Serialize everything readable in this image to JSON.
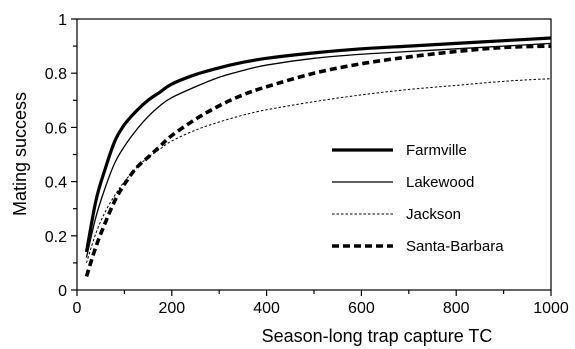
{
  "chart_data": {
    "type": "line",
    "xlabel": "Season-long trap capture TC",
    "ylabel": "Mating success",
    "xlim": [
      0,
      1000
    ],
    "ylim": [
      0,
      1
    ],
    "x_ticks": [
      0,
      200,
      400,
      600,
      800,
      1000
    ],
    "x_tick_labels": [
      "0",
      "200",
      "400",
      "600",
      "800",
      "1000"
    ],
    "y_ticks": [
      0,
      0.2,
      0.4,
      0.6,
      0.8,
      1
    ],
    "y_tick_labels": [
      "0",
      "0.2",
      "0.4",
      "0.6",
      "0.8",
      "1"
    ],
    "grid": false,
    "legend_position": "center-right",
    "series": [
      {
        "name": "Farmville",
        "style": "solid-thick",
        "color": "#000000",
        "points": [
          [
            20,
            0.14
          ],
          [
            40,
            0.33
          ],
          [
            60,
            0.45
          ],
          [
            80,
            0.55
          ],
          [
            100,
            0.61
          ],
          [
            125,
            0.66
          ],
          [
            150,
            0.7
          ],
          [
            175,
            0.73
          ],
          [
            200,
            0.76
          ],
          [
            250,
            0.795
          ],
          [
            300,
            0.82
          ],
          [
            350,
            0.84
          ],
          [
            400,
            0.855
          ],
          [
            500,
            0.875
          ],
          [
            600,
            0.89
          ],
          [
            700,
            0.9
          ],
          [
            800,
            0.91
          ],
          [
            900,
            0.92
          ],
          [
            1000,
            0.93
          ]
        ]
      },
      {
        "name": "Lakewood",
        "style": "solid-thin",
        "color": "#000000",
        "points": [
          [
            20,
            0.12
          ],
          [
            40,
            0.27
          ],
          [
            60,
            0.38
          ],
          [
            80,
            0.47
          ],
          [
            100,
            0.53
          ],
          [
            125,
            0.59
          ],
          [
            150,
            0.64
          ],
          [
            175,
            0.68
          ],
          [
            200,
            0.71
          ],
          [
            250,
            0.75
          ],
          [
            300,
            0.785
          ],
          [
            350,
            0.81
          ],
          [
            400,
            0.83
          ],
          [
            500,
            0.855
          ],
          [
            600,
            0.87
          ],
          [
            700,
            0.88
          ],
          [
            800,
            0.89
          ],
          [
            900,
            0.9
          ],
          [
            1000,
            0.91
          ]
        ]
      },
      {
        "name": "Jackson",
        "style": "dotted",
        "color": "#000000",
        "points": [
          [
            20,
            0.1
          ],
          [
            40,
            0.21
          ],
          [
            60,
            0.29
          ],
          [
            80,
            0.35
          ],
          [
            100,
            0.4
          ],
          [
            125,
            0.45
          ],
          [
            150,
            0.49
          ],
          [
            175,
            0.52
          ],
          [
            200,
            0.55
          ],
          [
            250,
            0.59
          ],
          [
            300,
            0.62
          ],
          [
            350,
            0.645
          ],
          [
            400,
            0.665
          ],
          [
            500,
            0.695
          ],
          [
            600,
            0.72
          ],
          [
            700,
            0.74
          ],
          [
            800,
            0.755
          ],
          [
            900,
            0.77
          ],
          [
            1000,
            0.78
          ]
        ]
      },
      {
        "name": "Santa-Barbara",
        "style": "dashed-thick",
        "color": "#000000",
        "points": [
          [
            20,
            0.05
          ],
          [
            40,
            0.16
          ],
          [
            60,
            0.25
          ],
          [
            80,
            0.33
          ],
          [
            100,
            0.39
          ],
          [
            125,
            0.45
          ],
          [
            150,
            0.49
          ],
          [
            175,
            0.53
          ],
          [
            200,
            0.57
          ],
          [
            250,
            0.63
          ],
          [
            300,
            0.68
          ],
          [
            350,
            0.72
          ],
          [
            400,
            0.75
          ],
          [
            500,
            0.8
          ],
          [
            600,
            0.835
          ],
          [
            700,
            0.86
          ],
          [
            800,
            0.88
          ],
          [
            900,
            0.895
          ],
          [
            1000,
            0.9
          ]
        ]
      }
    ]
  }
}
